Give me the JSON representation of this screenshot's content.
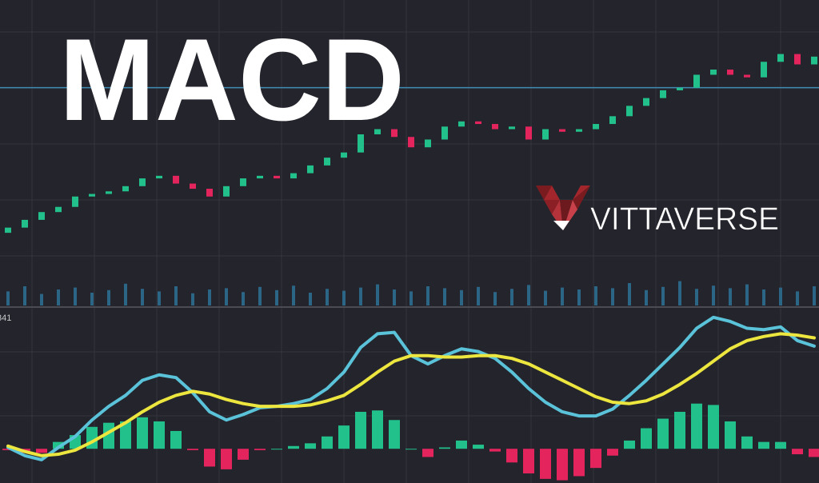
{
  "title": "MACD",
  "logo": "VITTAVERSE",
  "chart_data": [
    {
      "type": "candlestick",
      "open": [
        12,
        14,
        17,
        20,
        22,
        26,
        27,
        28,
        30,
        33,
        34,
        31,
        29,
        26,
        30,
        33,
        34,
        33,
        35,
        38,
        41,
        43,
        50,
        52,
        49,
        45,
        48,
        53,
        55,
        54,
        52,
        53,
        48,
        52,
        51,
        52,
        54,
        57,
        61,
        64,
        67,
        68,
        73,
        75,
        73,
        72,
        78,
        81,
        77
      ],
      "close": [
        14,
        17,
        20,
        22,
        26,
        27,
        28,
        30,
        33,
        34,
        31,
        29,
        26,
        30,
        33,
        34,
        33,
        35,
        38,
        41,
        43,
        50,
        52,
        49,
        45,
        48,
        53,
        55,
        54,
        52,
        53,
        48,
        52,
        51,
        52,
        54,
        57,
        61,
        64,
        67,
        68,
        73,
        75,
        73,
        72,
        78,
        81,
        77,
        80
      ],
      "up_color": "#22c08b",
      "down_color": "#e3245d",
      "ylim": [
        0,
        100
      ],
      "reference_line": {
        "value": 68,
        "color": "#3f8db5"
      },
      "grid": true
    },
    {
      "type": "bar",
      "values": [
        22,
        30,
        18,
        25,
        28,
        20,
        24,
        34,
        26,
        22,
        30,
        19,
        25,
        27,
        21,
        29,
        24,
        31,
        20,
        26,
        23,
        28,
        33,
        25,
        22,
        30,
        27,
        24,
        29,
        21,
        26,
        32,
        23,
        28,
        25,
        30,
        27,
        35,
        24,
        29,
        38,
        26,
        31,
        27,
        33,
        25,
        28,
        22,
        30
      ],
      "color": "#2c6686",
      "ylim": [
        0,
        50
      ]
    },
    {
      "type": "line",
      "label": "341",
      "ylim": [
        -25,
        100
      ],
      "series": [
        {
          "color": "#5bc3d9",
          "values": [
            1,
            -5,
            -8,
            1,
            9,
            21,
            31,
            39,
            50,
            54,
            52,
            41,
            27,
            21,
            25,
            30,
            31,
            33,
            36,
            44,
            56,
            74,
            84,
            85,
            68,
            62,
            68,
            73,
            71,
            66,
            56,
            44,
            34,
            27,
            24,
            24,
            29,
            39,
            50,
            62,
            74,
            88,
            96,
            93,
            88,
            87,
            89,
            79,
            75
          ]
        },
        {
          "color": "#ece63f",
          "values": [
            2,
            -2,
            -5,
            -4,
            -1,
            5,
            12,
            19,
            27,
            34,
            39,
            42,
            40,
            36,
            33,
            31,
            31,
            31,
            32,
            35,
            39,
            47,
            56,
            64,
            68,
            68,
            67,
            67,
            68,
            68,
            66,
            62,
            56,
            50,
            44,
            38,
            34,
            33,
            35,
            40,
            47,
            55,
            64,
            73,
            79,
            82,
            84,
            83,
            81
          ]
        }
      ],
      "histogram": {
        "values": [
          -1,
          -3,
          -3,
          5,
          10,
          16,
          19,
          20,
          23,
          20,
          13,
          -1,
          -13,
          -15,
          -8,
          -1,
          0,
          2,
          4,
          9,
          17,
          27,
          28,
          21,
          0,
          -6,
          1,
          6,
          3,
          -2,
          -10,
          -18,
          -22,
          -23,
          -20,
          -14,
          -5,
          6,
          15,
          22,
          27,
          33,
          32,
          20,
          9,
          5,
          5,
          -4,
          -6
        ],
        "up_color": "#22c08b",
        "down_color": "#e3245d"
      }
    }
  ]
}
